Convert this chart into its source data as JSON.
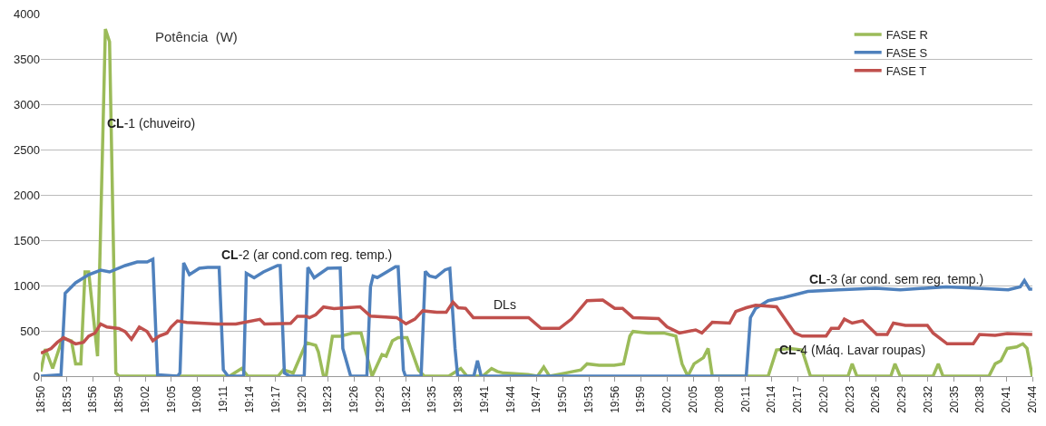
{
  "chart_data": {
    "type": "line",
    "title": "Potência  (W)",
    "xlim": [
      18.8333,
      20.7333
    ],
    "ylim": [
      0,
      4000
    ],
    "yticks": [
      0,
      500,
      1000,
      1500,
      2000,
      2500,
      3000,
      3500,
      4000
    ],
    "xticks": [
      {
        "value": 18.8333,
        "label": "18:50"
      },
      {
        "value": 18.8833,
        "label": "18:53"
      },
      {
        "value": 18.9333,
        "label": "18:56"
      },
      {
        "value": 18.9833,
        "label": "18:59"
      },
      {
        "value": 19.0333,
        "label": "19:02"
      },
      {
        "value": 19.0833,
        "label": "19:05"
      },
      {
        "value": 19.1333,
        "label": "19:08"
      },
      {
        "value": 19.1833,
        "label": "19:11"
      },
      {
        "value": 19.2333,
        "label": "19:14"
      },
      {
        "value": 19.2833,
        "label": "19:17"
      },
      {
        "value": 19.3333,
        "label": "19:20"
      },
      {
        "value": 19.3833,
        "label": "19:23"
      },
      {
        "value": 19.4333,
        "label": "19:26"
      },
      {
        "value": 19.4833,
        "label": "19:29"
      },
      {
        "value": 19.5333,
        "label": "19:32"
      },
      {
        "value": 19.5833,
        "label": "19:35"
      },
      {
        "value": 19.6333,
        "label": "19:38"
      },
      {
        "value": 19.6833,
        "label": "19:41"
      },
      {
        "value": 19.7333,
        "label": "19:44"
      },
      {
        "value": 19.7833,
        "label": "19:47"
      },
      {
        "value": 19.8333,
        "label": "19:50"
      },
      {
        "value": 19.8833,
        "label": "19:53"
      },
      {
        "value": 19.9333,
        "label": "19:56"
      },
      {
        "value": 19.9833,
        "label": "19:59"
      },
      {
        "value": 20.0333,
        "label": "20:02"
      },
      {
        "value": 20.0833,
        "label": "20:05"
      },
      {
        "value": 20.1333,
        "label": "20:08"
      },
      {
        "value": 20.1833,
        "label": "20:11"
      },
      {
        "value": 20.2333,
        "label": "20:14"
      },
      {
        "value": 20.2833,
        "label": "20:17"
      },
      {
        "value": 20.3333,
        "label": "20:20"
      },
      {
        "value": 20.3833,
        "label": "20:23"
      },
      {
        "value": 20.4333,
        "label": "20:26"
      },
      {
        "value": 20.4833,
        "label": "20:29"
      },
      {
        "value": 20.5333,
        "label": "20:32"
      },
      {
        "value": 20.5833,
        "label": "20:35"
      },
      {
        "value": 20.6333,
        "label": "20:38"
      },
      {
        "value": 20.6833,
        "label": "20:41"
      },
      {
        "value": 20.7333,
        "label": "20:44"
      }
    ],
    "grid": "y",
    "legend": "top right",
    "marker": "none",
    "line_style": "solid",
    "series": [
      {
        "name": "FASE R",
        "color": "#9bbb59",
        "x": [
          18.8333,
          18.842,
          18.856,
          18.875,
          18.892,
          18.9,
          18.91,
          18.918,
          18.925,
          18.942,
          18.957,
          18.965,
          18.977,
          18.983,
          19.195,
          19.218,
          19.23,
          19.288,
          19.298,
          19.317,
          19.342,
          19.36,
          19.365,
          19.375,
          19.38,
          19.392,
          19.407,
          19.43,
          19.447,
          19.468,
          19.487,
          19.495,
          19.507,
          19.518,
          19.535,
          19.557,
          19.568,
          19.615,
          19.638,
          19.65,
          19.68,
          19.697,
          19.708,
          19.72,
          19.767,
          19.785,
          19.797,
          19.808,
          19.838,
          19.868,
          19.88,
          19.903,
          19.932,
          19.95,
          19.962,
          19.968,
          19.997,
          20.027,
          20.05,
          20.062,
          20.073,
          20.085,
          20.103,
          20.112,
          20.12,
          20.227,
          20.243,
          20.268,
          20.292,
          20.308,
          20.38,
          20.388,
          20.397,
          20.462,
          20.47,
          20.48,
          20.543,
          20.553,
          20.562,
          20.65,
          20.662,
          20.673,
          20.685,
          20.703,
          20.715,
          20.723,
          20.733
        ],
        "values": [
          50,
          300,
          85,
          420,
          390,
          135,
          135,
          1150,
          1150,
          220,
          3830,
          3690,
          35,
          0,
          0,
          85,
          0,
          0,
          70,
          35,
          370,
          340,
          270,
          0,
          0,
          440,
          440,
          475,
          476,
          0,
          238,
          220,
          390,
          425,
          425,
          68,
          0,
          0,
          85,
          0,
          0,
          85,
          51,
          34,
          17,
          0,
          100,
          0,
          34,
          68,
          136,
          120,
          120,
          136,
          442,
          493,
          476,
          476,
          442,
          136,
          0,
          136,
          204,
          306,
          0,
          0,
          289,
          306,
          289,
          0,
          0,
          136,
          0,
          0,
          136,
          0,
          0,
          136,
          0,
          0,
          136,
          170,
          306,
          323,
          357,
          306,
          0
        ]
      },
      {
        "name": "FASE S",
        "color": "#4f81bd",
        "x": [
          18.8333,
          18.872,
          18.88,
          18.9,
          18.925,
          18.948,
          18.965,
          18.995,
          19.018,
          19.037,
          19.048,
          19.057,
          19.095,
          19.1,
          19.107,
          19.118,
          19.137,
          19.153,
          19.175,
          19.183,
          19.192,
          19.222,
          19.227,
          19.242,
          19.26,
          19.287,
          19.292,
          19.3,
          19.31,
          19.338,
          19.345,
          19.357,
          19.383,
          19.407,
          19.412,
          19.427,
          19.458,
          19.465,
          19.47,
          19.478,
          19.513,
          19.518,
          19.528,
          19.532,
          19.562,
          19.57,
          19.578,
          19.59,
          19.608,
          19.617,
          19.627,
          19.632,
          19.663,
          19.67,
          19.677,
          20.185,
          20.193,
          20.203,
          20.227,
          20.257,
          20.303,
          20.362,
          20.433,
          20.48,
          20.568,
          20.627,
          20.687,
          20.71,
          20.718,
          20.728,
          20.733
        ],
        "values": [
          0,
          15,
          915,
          1030,
          1120,
          1170,
          1150,
          1220,
          1260,
          1260,
          1290,
          15,
          0,
          35,
          1250,
          1120,
          1190,
          1200,
          1200,
          70,
          0,
          0,
          1135,
          1085,
          1150,
          1220,
          1220,
          35,
          0,
          0,
          1200,
          1085,
          1190,
          1195,
          305,
          0,
          0,
          986,
          1105,
          1088,
          1207,
          1207,
          68,
          0,
          0,
          1156,
          1105,
          1088,
          1173,
          1190,
          306,
          0,
          0,
          170,
          0,
          0,
          646,
          748,
          833,
          867,
          935,
          952,
          969,
          952,
          986,
          969,
          952,
          986,
          1054,
          959,
          959
        ]
      },
      {
        "name": "FASE T",
        "color": "#c0504d",
        "x": [
          18.8333,
          18.853,
          18.865,
          18.877,
          18.9,
          18.915,
          18.925,
          18.937,
          18.948,
          18.96,
          18.983,
          18.995,
          19.007,
          19.022,
          19.037,
          19.048,
          19.06,
          19.075,
          19.083,
          19.095,
          19.113,
          19.172,
          19.207,
          19.253,
          19.262,
          19.312,
          19.325,
          19.342,
          19.348,
          19.36,
          19.375,
          19.395,
          19.445,
          19.465,
          19.515,
          19.533,
          19.55,
          19.565,
          19.592,
          19.61,
          19.623,
          19.633,
          19.647,
          19.662,
          19.768,
          19.792,
          19.827,
          19.85,
          19.88,
          19.91,
          19.933,
          19.948,
          19.968,
          20.017,
          20.033,
          20.057,
          20.088,
          20.1,
          20.12,
          20.153,
          20.165,
          20.185,
          20.203,
          20.243,
          20.278,
          20.292,
          20.338,
          20.348,
          20.362,
          20.373,
          20.388,
          20.408,
          20.435,
          20.455,
          20.467,
          20.49,
          20.532,
          20.543,
          20.57,
          20.62,
          20.632,
          20.662,
          20.685,
          20.733
        ],
        "values": [
          254,
          305,
          373,
          424,
          356,
          373,
          441,
          475,
          576,
          542,
          525,
          492,
          407,
          542,
          492,
          390,
          441,
          475,
          542,
          610,
          593,
          576,
          576,
          627,
          576,
          583,
          661,
          661,
          644,
          678,
          763,
          746,
          765,
          663,
          646,
          578,
          629,
          721,
          704,
          704,
          816,
          755,
          748,
          646,
          646,
          527,
          527,
          629,
          833,
          840,
          748,
          748,
          646,
          636,
          544,
          476,
          510,
          476,
          595,
          585,
          714,
          755,
          782,
          765,
          476,
          442,
          442,
          527,
          527,
          629,
          585,
          612,
          459,
          459,
          585,
          561,
          561,
          476,
          357,
          357,
          459,
          449,
          469,
          459
        ]
      }
    ],
    "annotations": [
      {
        "text": "CL-1 (chuveiro)",
        "x": 18.957,
        "y": 2650
      },
      {
        "text": "CL-2 (ar cond.com reg. temp.)",
        "x": 19.175,
        "y": 1200
      },
      {
        "text": "DLs",
        "x": 19.698,
        "y": 650
      },
      {
        "text": "CL-3 (ar cond. sem reg. temp.)",
        "x": 20.303,
        "y": 935
      },
      {
        "text": "CL-4 (Máq. Lavar roupas)",
        "x": 20.245,
        "y": 150
      }
    ]
  }
}
